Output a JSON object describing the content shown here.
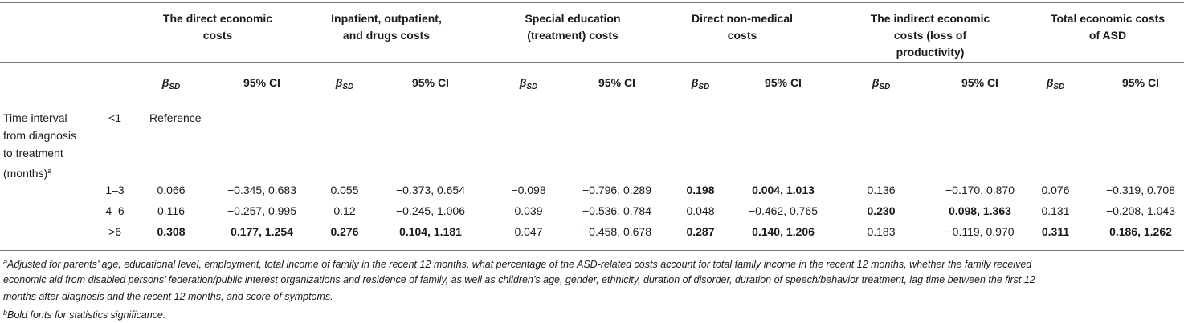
{
  "table": {
    "groups": [
      [
        "The direct economic",
        "costs"
      ],
      [
        "Inpatient, outpatient,",
        "and drugs costs"
      ],
      [
        "Special education",
        "(treatment) costs"
      ],
      [
        "Direct non-medical",
        "costs"
      ],
      [
        "The indirect economic",
        "costs (loss of",
        "productivity)"
      ],
      [
        "Total economic costs",
        "of ASD"
      ]
    ],
    "beta_symbol": "β",
    "beta_sub": "SD",
    "ci_label": "95% CI",
    "row_label": [
      "Time interval",
      "from diagnosis",
      "to treatment",
      "(months)"
    ],
    "row_label_sup": "a",
    "reference_interval": "<1",
    "reference_text": "Reference",
    "rows": [
      {
        "interval": "1–3",
        "cells": [
          {
            "v": "0.066",
            "b": false
          },
          {
            "v": "−0.345, 0.683",
            "b": false
          },
          {
            "v": "0.055",
            "b": false
          },
          {
            "v": "−0.373, 0.654",
            "b": false
          },
          {
            "v": "−0.098",
            "b": false
          },
          {
            "v": "−0.796, 0.289",
            "b": false
          },
          {
            "v": "0.198",
            "b": true
          },
          {
            "v": "0.004, 1.013",
            "b": true
          },
          {
            "v": "0.136",
            "b": false
          },
          {
            "v": "−0.170, 0.870",
            "b": false
          },
          {
            "v": "0.076",
            "b": false
          },
          {
            "v": "−0.319, 0.708",
            "b": false
          }
        ]
      },
      {
        "interval": "4–6",
        "cells": [
          {
            "v": "0.116",
            "b": false
          },
          {
            "v": "−0.257, 0.995",
            "b": false
          },
          {
            "v": "0.12",
            "b": false
          },
          {
            "v": "−0.245, 1.006",
            "b": false
          },
          {
            "v": "0.039",
            "b": false
          },
          {
            "v": "−0.536, 0.784",
            "b": false
          },
          {
            "v": "0.048",
            "b": false
          },
          {
            "v": "−0.462, 0.765",
            "b": false
          },
          {
            "v": "0.230",
            "b": true
          },
          {
            "v": "0.098, 1.363",
            "b": true
          },
          {
            "v": "0.131",
            "b": false
          },
          {
            "v": "−0.208, 1.043",
            "b": false
          }
        ]
      },
      {
        "interval": ">6",
        "cells": [
          {
            "v": "0.308",
            "b": true
          },
          {
            "v": "0.177, 1.254",
            "b": true
          },
          {
            "v": "0.276",
            "b": true
          },
          {
            "v": "0.104, 1.181",
            "b": true
          },
          {
            "v": "0.047",
            "b": false
          },
          {
            "v": "−0.458, 0.678",
            "b": false
          },
          {
            "v": "0.287",
            "b": true
          },
          {
            "v": "0.140, 1.206",
            "b": true
          },
          {
            "v": "0.183",
            "b": false
          },
          {
            "v": "−0.119, 0.970",
            "b": false
          },
          {
            "v": "0.311",
            "b": true
          },
          {
            "v": "0.186, 1.262",
            "b": true
          }
        ]
      }
    ]
  },
  "footnotes": {
    "a_marker": "a",
    "a_lines": [
      "Adjusted for parents’ age, educational level, employment, total income of family in the recent 12 months, what percentage of the ASD-related costs account for total family income in the recent 12 months, whether the family received",
      "economic aid from disabled persons’ federation/public interest organizations and residence of family, as well as children’s age, gender, ethnicity, duration of disorder, duration of speech/behavior treatment, lag time between the first 12",
      "months after diagnosis and the recent 12 months, and score of symptoms."
    ],
    "b_marker": "b",
    "b_text": "Bold fonts for statistics significance."
  }
}
